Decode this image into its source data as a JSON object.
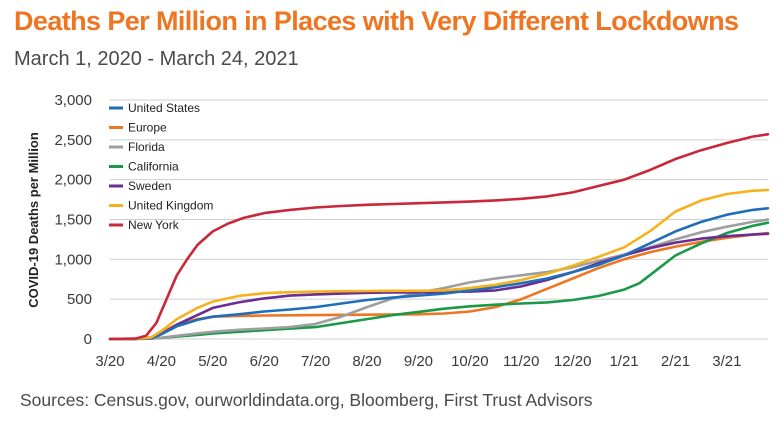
{
  "title": "Deaths Per Million in Places with Very Different Lockdowns",
  "subtitle": "March 1, 2020 - March 24, 2021",
  "source": "Sources: Census.gov, ourworldindata.org, Bloomberg, First Trust Advisors",
  "colors": {
    "title": "#ee7623"
  },
  "chart_data": {
    "type": "line",
    "ylabel": "COVID-19 Deaths per Million",
    "xlabel": "",
    "ylim": [
      0,
      3000
    ],
    "yticks": [
      0,
      500,
      1000,
      1500,
      2000,
      2500,
      3000
    ],
    "ytick_labels": [
      "0",
      "500",
      "1,000",
      "1,500",
      "2,000",
      "2,500",
      "3,000"
    ],
    "xlim": [
      0,
      12.8
    ],
    "xticks": [
      0,
      1,
      2,
      3,
      4,
      5,
      6,
      7,
      8,
      9,
      10,
      11,
      12
    ],
    "xtick_labels": [
      "3/20",
      "4/20",
      "5/20",
      "6/20",
      "7/20",
      "8/20",
      "9/20",
      "10/20",
      "11/20",
      "12/20",
      "1/21",
      "2/21",
      "3/21"
    ],
    "x_unit": "months since March 1, 2020 (aligned with tick labels)",
    "grid": "horizontal",
    "legend_position": "top-left",
    "series": [
      {
        "name": "United States",
        "color": "#1f6fb8",
        "x": [
          0,
          0.5,
          0.8,
          1,
          1.3,
          1.7,
          2,
          2.5,
          3,
          3.5,
          4,
          4.5,
          5,
          5.5,
          6,
          6.5,
          7,
          7.5,
          8,
          8.5,
          9,
          9.5,
          10,
          10.5,
          11,
          11.5,
          12,
          12.5,
          12.8
        ],
        "values": [
          0,
          2,
          10,
          60,
          160,
          240,
          280,
          310,
          345,
          370,
          400,
          445,
          490,
          520,
          545,
          570,
          610,
          650,
          700,
          760,
          840,
          930,
          1050,
          1200,
          1350,
          1470,
          1560,
          1620,
          1640
        ]
      },
      {
        "name": "Europe",
        "color": "#ee7623",
        "x": [
          0,
          0.5,
          0.8,
          1,
          1.3,
          1.7,
          2,
          2.5,
          3,
          3.5,
          4,
          5,
          6,
          6.5,
          7,
          7.5,
          8,
          8.5,
          9,
          9.5,
          10,
          10.5,
          11,
          11.5,
          12,
          12.5,
          12.8
        ],
        "values": [
          0,
          2,
          20,
          80,
          180,
          250,
          280,
          290,
          295,
          298,
          300,
          305,
          310,
          320,
          345,
          400,
          500,
          630,
          760,
          890,
          1000,
          1090,
          1160,
          1220,
          1270,
          1310,
          1330
        ]
      },
      {
        "name": "Florida",
        "color": "#9e9e9e",
        "x": [
          0,
          0.5,
          0.8,
          1,
          1.3,
          1.7,
          2,
          2.5,
          3,
          3.5,
          4,
          4.5,
          5,
          5.5,
          6,
          6.5,
          7,
          7.5,
          8,
          8.5,
          9,
          9.5,
          10,
          10.5,
          11,
          11.5,
          12,
          12.5,
          12.8
        ],
        "values": [
          0,
          1,
          5,
          15,
          40,
          70,
          90,
          115,
          130,
          150,
          190,
          280,
          400,
          510,
          580,
          640,
          710,
          760,
          800,
          840,
          900,
          980,
          1060,
          1150,
          1250,
          1340,
          1410,
          1470,
          1500
        ]
      },
      {
        "name": "California",
        "color": "#1a9a48",
        "x": [
          0,
          0.5,
          0.8,
          1,
          1.3,
          1.7,
          2,
          2.5,
          3,
          3.5,
          4,
          4.5,
          5,
          5.5,
          6,
          6.5,
          7,
          7.5,
          8,
          8.5,
          9,
          9.5,
          10,
          10.3,
          10.6,
          11,
          11.5,
          12,
          12.5,
          12.8
        ],
        "values": [
          0,
          1,
          5,
          15,
          30,
          50,
          70,
          90,
          110,
          130,
          150,
          200,
          250,
          300,
          340,
          380,
          410,
          430,
          445,
          460,
          490,
          540,
          620,
          700,
          850,
          1050,
          1200,
          1330,
          1420,
          1460
        ]
      },
      {
        "name": "Sweden",
        "color": "#6a2d91",
        "x": [
          0,
          0.5,
          0.8,
          1,
          1.3,
          1.7,
          2,
          2.5,
          3,
          3.5,
          4,
          4.5,
          5,
          5.5,
          6,
          6.5,
          7,
          7.5,
          8,
          8.5,
          9,
          9.5,
          10,
          10.5,
          11,
          11.5,
          12,
          12.5,
          12.8
        ],
        "values": [
          0,
          2,
          10,
          60,
          180,
          300,
          390,
          460,
          510,
          545,
          560,
          570,
          580,
          585,
          585,
          590,
          595,
          610,
          660,
          740,
          840,
          950,
          1050,
          1140,
          1210,
          1260,
          1290,
          1310,
          1320
        ]
      },
      {
        "name": "United Kingdom",
        "color": "#f5b21d",
        "x": [
          0,
          0.5,
          0.8,
          1,
          1.3,
          1.7,
          2,
          2.5,
          3,
          3.5,
          4,
          4.5,
          5,
          5.5,
          6,
          6.5,
          7,
          7.5,
          8,
          8.5,
          9,
          9.5,
          10,
          10.5,
          11,
          11.5,
          12,
          12.5,
          12.8
        ],
        "values": [
          0,
          2,
          20,
          100,
          250,
          390,
          470,
          540,
          575,
          588,
          595,
          600,
          602,
          605,
          605,
          610,
          640,
          680,
          740,
          820,
          920,
          1030,
          1150,
          1350,
          1600,
          1740,
          1820,
          1860,
          1870
        ]
      },
      {
        "name": "New York",
        "color": "#c8283a",
        "x": [
          0,
          0.5,
          0.7,
          0.9,
          1.1,
          1.3,
          1.5,
          1.7,
          2,
          2.3,
          2.6,
          3,
          3.5,
          4,
          4.5,
          5,
          5.5,
          6,
          6.5,
          7,
          7.5,
          8,
          8.5,
          9,
          9.5,
          10,
          10.5,
          11,
          11.5,
          12,
          12.5,
          12.8
        ],
        "values": [
          0,
          5,
          40,
          200,
          500,
          800,
          1000,
          1180,
          1350,
          1450,
          1520,
          1580,
          1620,
          1650,
          1670,
          1685,
          1695,
          1705,
          1715,
          1725,
          1740,
          1760,
          1790,
          1840,
          1920,
          2000,
          2120,
          2260,
          2370,
          2460,
          2540,
          2570
        ]
      }
    ]
  }
}
